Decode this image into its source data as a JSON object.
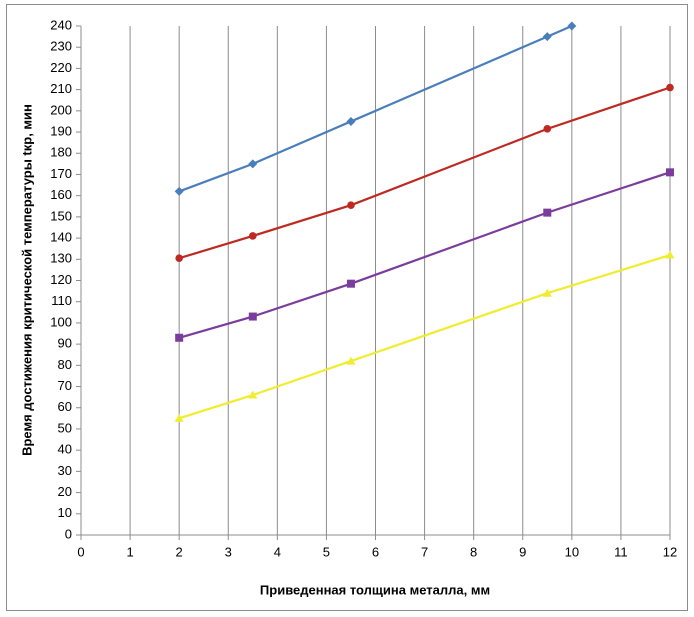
{
  "chart_data": {
    "type": "line",
    "xlabel": "Приведенная толщина металла, мм",
    "ylabel": "Время достижения критической температуры tкр, мин",
    "xlim": [
      0,
      12
    ],
    "xticks": [
      0,
      1,
      2,
      3,
      4,
      5,
      6,
      7,
      8,
      9,
      10,
      11,
      12
    ],
    "ylim": [
      0,
      240
    ],
    "yticks": [
      0,
      10,
      20,
      30,
      40,
      50,
      60,
      70,
      80,
      90,
      100,
      110,
      120,
      130,
      140,
      150,
      160,
      170,
      180,
      190,
      200,
      210,
      220,
      230,
      240
    ],
    "xgrid": true,
    "series": [
      {
        "color": "#4a7ebb",
        "marker": "diamond",
        "x": [
          2,
          3.5,
          5.5,
          9.5,
          10
        ],
        "values": [
          162,
          175,
          195,
          235,
          240
        ]
      },
      {
        "color": "#be2a22",
        "marker": "circle",
        "x": [
          2,
          3.5,
          5.5,
          9.5,
          12
        ],
        "values": [
          130.5,
          141,
          155.5,
          191.5,
          211
        ]
      },
      {
        "color": "#7a3d9c",
        "marker": "square",
        "x": [
          2,
          3.5,
          5.5,
          9.5,
          12
        ],
        "values": [
          93,
          103,
          118.5,
          152,
          171
        ]
      },
      {
        "color": "#f0ec2e",
        "marker": "triangle",
        "x": [
          2,
          3.5,
          5.5,
          9.5,
          12
        ],
        "values": [
          55,
          66,
          82,
          114,
          132
        ]
      }
    ]
  }
}
